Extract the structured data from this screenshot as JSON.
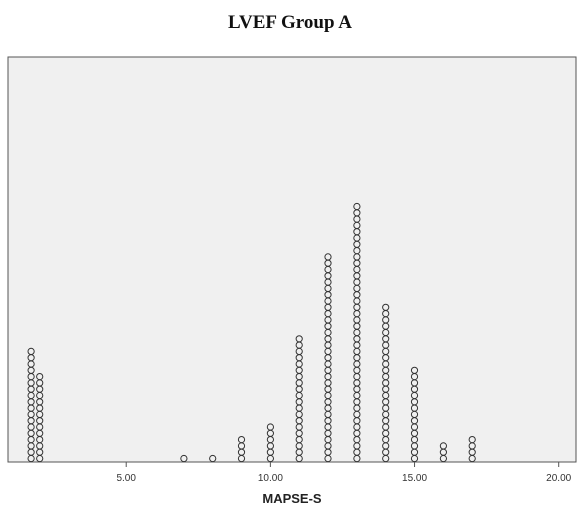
{
  "chart_data": {
    "type": "scatter",
    "subtype": "dot-plot",
    "title": "LVEF Group A",
    "xlabel": "MAPSE-S",
    "ylabel": "",
    "xlim": [
      0.9,
      20.6
    ],
    "xticks": [
      {
        "value": 5,
        "label": "5.00"
      },
      {
        "value": 10,
        "label": "10.00"
      },
      {
        "value": 15,
        "label": "15.00"
      },
      {
        "value": 20,
        "label": "20.00"
      }
    ],
    "grid": false,
    "background_color": "#f0f0f0",
    "marker": "open-circle",
    "points": [
      {
        "x": 1.7,
        "count": 18
      },
      {
        "x": 2.0,
        "count": 14
      },
      {
        "x": 7,
        "count": 1
      },
      {
        "x": 8,
        "count": 1
      },
      {
        "x": 9,
        "count": 4
      },
      {
        "x": 10,
        "count": 6
      },
      {
        "x": 11,
        "count": 20
      },
      {
        "x": 12,
        "count": 33
      },
      {
        "x": 13,
        "count": 41
      },
      {
        "x": 14,
        "count": 25
      },
      {
        "x": 15,
        "count": 15
      },
      {
        "x": 16,
        "count": 3
      },
      {
        "x": 17,
        "count": 4
      }
    ]
  }
}
